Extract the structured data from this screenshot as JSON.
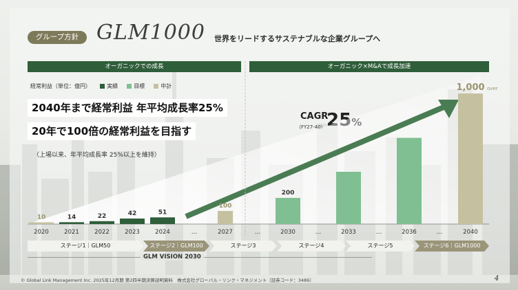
{
  "header": {
    "pill": "グループ方針",
    "brand": "GLM1000",
    "tagline": "世界をリードするサステナブルな企業グループへ"
  },
  "sections": {
    "left": "オーガニックでの成長",
    "right": "オーガニック×M&Aで成長加速"
  },
  "legend": {
    "label": "経常利益（単位：億円）",
    "items": [
      {
        "name": "実績",
        "color": "#2f5e3a"
      },
      {
        "name": "目標",
        "color": "#7fbf92"
      },
      {
        "name": "中計",
        "color": "#c5c1a0"
      }
    ]
  },
  "headline": {
    "line1": "2040年まで経常利益 年平均成長率25%",
    "line2": "20年で100倍の経常利益を目指す",
    "note": "（上場以来、年平均成長率 25%以上を維持）"
  },
  "cagr": {
    "label": "CAGR",
    "sub": "（FY27-40）",
    "value": "25",
    "unit": "%"
  },
  "chart_data": {
    "type": "bar",
    "categories": [
      "2020",
      "2021",
      "2022",
      "2023",
      "2024",
      "…",
      "2027",
      "…",
      "2030",
      "…",
      "2033",
      "…",
      "2036",
      "…",
      "2040"
    ],
    "values": [
      10,
      14,
      22,
      42,
      51,
      null,
      100,
      null,
      200,
      null,
      null,
      null,
      null,
      null,
      1000
    ],
    "value_labels": [
      "10",
      "14",
      "22",
      "42",
      "51",
      "",
      "100",
      "",
      "200",
      "",
      "",
      "",
      "",
      "",
      "1,000"
    ],
    "suffix_label": "over",
    "kinds": [
      "中計",
      "実績",
      "実績",
      "実績",
      "実績",
      "",
      "中計",
      "",
      "目標",
      "",
      "目標",
      "",
      "目標",
      "",
      "中計"
    ],
    "ylim": [
      0,
      1000
    ],
    "xlabel": "",
    "ylabel": "",
    "legend": "top-left"
  },
  "stages": [
    {
      "name": "ステージ1",
      "label": "GLM50",
      "dark": false
    },
    {
      "name": "ステージ2",
      "label": "GLM100",
      "dark": true
    },
    {
      "name": "ステージ3",
      "label": "",
      "dark": false
    },
    {
      "name": "ステージ4",
      "label": "",
      "dark": false
    },
    {
      "name": "ステージ5",
      "label": "",
      "dark": false
    },
    {
      "name": "ステージ6",
      "label": "GLM1000",
      "dark": true
    }
  ],
  "vision": "GLM VISION 2030",
  "footer": "© Global Link Management Inc. 2025年12月期 第2四半期決算説明資料　株式会社グローバル・リンク・マネジメント（証券コード：3486）",
  "page_number": "4",
  "colors": {
    "actual": "#2f5e3a",
    "target": "#7fbf92",
    "plan": "#c5c1a0",
    "header": "#2f5e3a",
    "arrow": "#4a7c53",
    "stage_light": "#f2f2ee",
    "stage_dark": "#9a9479"
  }
}
